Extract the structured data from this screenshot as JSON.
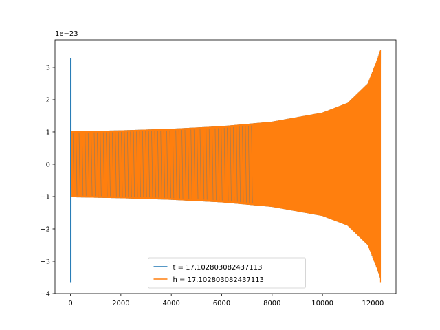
{
  "chart_data": {
    "type": "line",
    "title": "",
    "xlabel": "",
    "ylabel": "",
    "y_offset_text": "1e−23",
    "y_scale_exponent": -23,
    "xlim": [
      -615,
      12915
    ],
    "ylim": [
      -4.0,
      3.85
    ],
    "grid": false,
    "legend_position": "lower-center",
    "x_ticks": [
      {
        "value": 0,
        "label": "0"
      },
      {
        "value": 2000,
        "label": "2000"
      },
      {
        "value": 4000,
        "label": "4000"
      },
      {
        "value": 6000,
        "label": "6000"
      },
      {
        "value": 8000,
        "label": "8000"
      },
      {
        "value": 10000,
        "label": "10000"
      },
      {
        "value": 12000,
        "label": "12000"
      }
    ],
    "y_ticks": [
      {
        "value": -4,
        "label": "−4"
      },
      {
        "value": -3,
        "label": "−3"
      },
      {
        "value": -2,
        "label": "−2"
      },
      {
        "value": -1,
        "label": "−1"
      },
      {
        "value": 0,
        "label": "0"
      },
      {
        "value": 1,
        "label": "1"
      },
      {
        "value": 2,
        "label": "2"
      },
      {
        "value": 3,
        "label": "3"
      }
    ],
    "series": [
      {
        "name": "t = 17.102803082437113",
        "color": "#1f77b4",
        "x_range": [
          0,
          12300
        ],
        "spike": {
          "x": 0,
          "y_max": 3.28,
          "y_min": -3.65
        },
        "envelope": [
          [
            50,
            1.02
          ],
          [
            2000,
            1.05
          ],
          [
            4000,
            1.1
          ],
          [
            6000,
            1.18
          ],
          [
            8000,
            1.32
          ],
          [
            10000,
            1.6
          ],
          [
            11000,
            1.9
          ],
          [
            11800,
            2.5
          ],
          [
            12200,
            3.3
          ],
          [
            12300,
            3.55
          ]
        ]
      },
      {
        "name": "h = 17.102803082437113",
        "color": "#ff7f0e",
        "x_range": [
          50,
          12300
        ],
        "envelope": [
          [
            50,
            1.02
          ],
          [
            2000,
            1.05
          ],
          [
            4000,
            1.1
          ],
          [
            6000,
            1.18
          ],
          [
            8000,
            1.32
          ],
          [
            10000,
            1.6
          ],
          [
            11000,
            1.9
          ],
          [
            11800,
            2.5
          ],
          [
            12200,
            3.3
          ],
          [
            12300,
            3.55
          ]
        ],
        "end_min": -3.65
      }
    ]
  }
}
